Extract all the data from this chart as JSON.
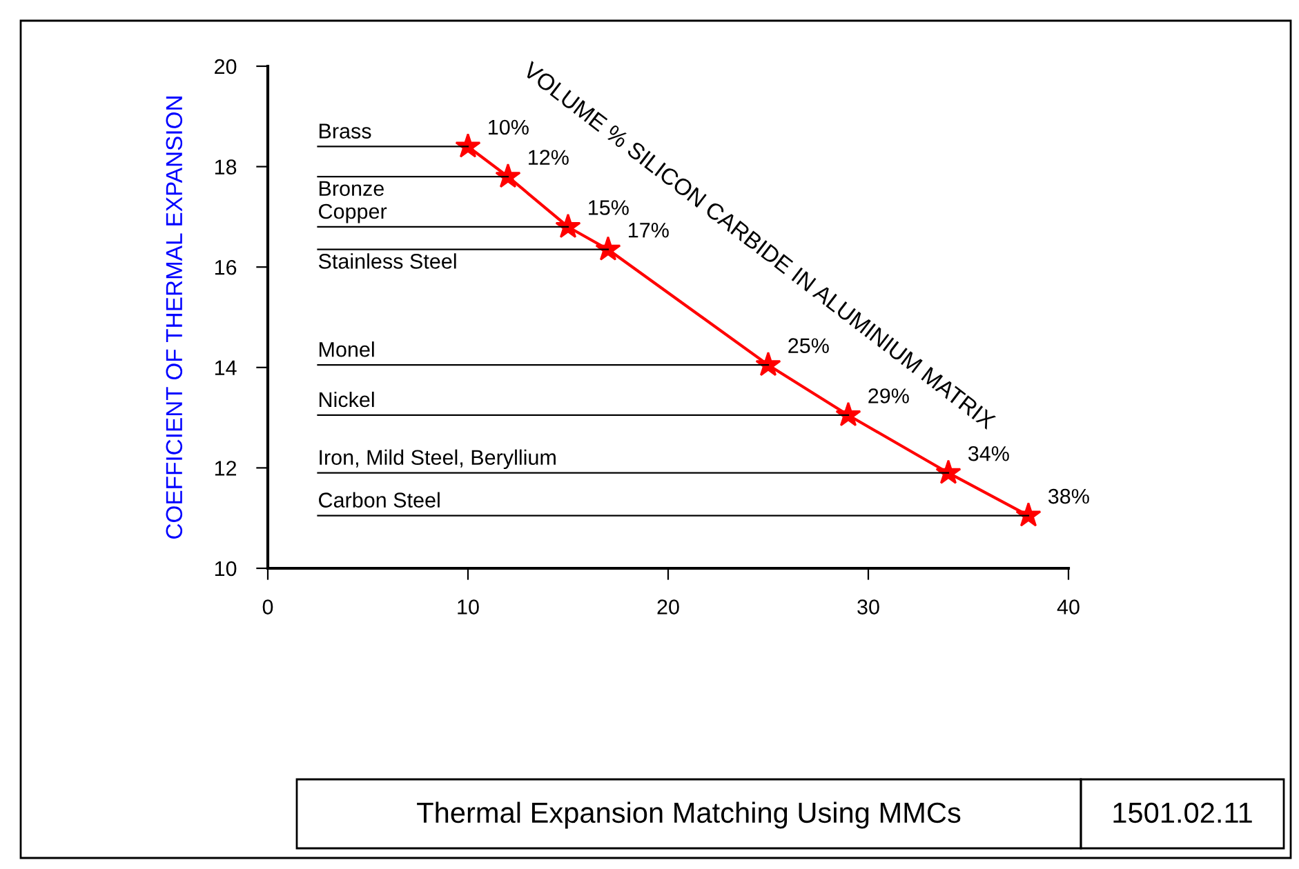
{
  "chart_data": {
    "type": "line",
    "title": "Thermal Expansion Matching Using MMCs",
    "ylabel": "COEFFICIENT OF THERMAL EXPANSION",
    "series": [
      {
        "color": "#ff0000",
        "marker": "star",
        "x": [
          10,
          12,
          15,
          17,
          25,
          29,
          34,
          38
        ],
        "values": [
          18.4,
          17.8,
          16.8,
          16.35,
          14.05,
          13.05,
          11.9,
          11.05
        ]
      },
      {
        "name": "Brass",
        "color": "#000000",
        "marker": "none",
        "x": [
          2.5,
          10
        ],
        "values": [
          18.4,
          18.4
        ]
      },
      {
        "name": "Bronze",
        "color": "#000000",
        "marker": "none",
        "x": [
          2.5,
          12
        ],
        "values": [
          17.8,
          17.8
        ]
      },
      {
        "name": "Copper",
        "color": "#000000",
        "marker": "none",
        "x": [
          2.5,
          15
        ],
        "values": [
          16.8,
          16.8
        ]
      },
      {
        "name": "Stainless Steel",
        "color": "#000000",
        "marker": "none",
        "x": [
          2.5,
          17
        ],
        "values": [
          16.35,
          16.35
        ]
      },
      {
        "name": "Monel",
        "color": "#000000",
        "marker": "none",
        "x": [
          2.5,
          25
        ],
        "values": [
          14.05,
          14.05
        ]
      },
      {
        "name": "Nickel",
        "color": "#000000",
        "marker": "none",
        "x": [
          2.5,
          29
        ],
        "values": [
          13.05,
          13.05
        ]
      },
      {
        "name": "Iron, Mild Steel, Beryllium",
        "color": "#000000",
        "marker": "none",
        "x": [
          2.5,
          34
        ],
        "values": [
          11.9,
          11.9
        ]
      },
      {
        "name": "Carbon Steel",
        "color": "#000000",
        "marker": "none",
        "x": [
          2.5,
          38
        ],
        "values": [
          11.05,
          11.05
        ]
      }
    ],
    "grid": false,
    "legend": false,
    "xlim": [
      0,
      40
    ],
    "xticks": [
      0,
      10,
      20,
      30,
      40
    ],
    "ylim": [
      10,
      20
    ],
    "yticks": [
      10,
      12,
      14,
      16,
      18,
      20
    ],
    "annotations": [
      {
        "text": "10%",
        "x": 10,
        "y": 18.4
      },
      {
        "text": "12%",
        "x": 12,
        "y": 17.8
      },
      {
        "text": "15%",
        "x": 15,
        "y": 16.8
      },
      {
        "text": "17%",
        "x": 17,
        "y": 16.35
      },
      {
        "text": "25%",
        "x": 25,
        "y": 14.05
      },
      {
        "text": "29%",
        "x": 29,
        "y": 13.05
      },
      {
        "text": "34%",
        "x": 34,
        "y": 11.9
      },
      {
        "text": "38%",
        "x": 38,
        "y": 11.05
      },
      "VOLUME % SILICON CARBIDE IN ALUMINIUM MATRIX",
      "1501.02.11"
    ]
  }
}
